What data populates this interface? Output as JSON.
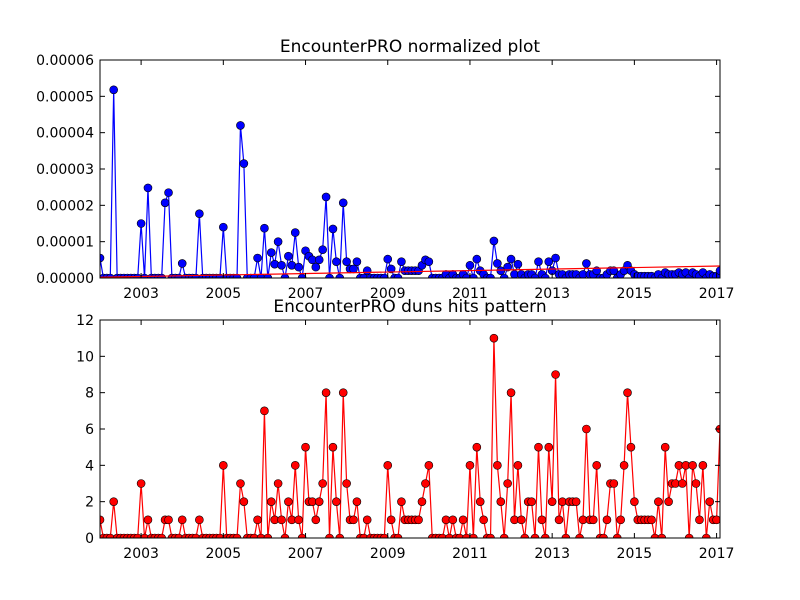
{
  "chart_data": [
    {
      "type": "line",
      "title": "EncounterPRO normalized plot",
      "x": [
        2002,
        2002.083,
        2002.167,
        2002.25,
        2002.333,
        2002.417,
        2002.5,
        2002.583,
        2002.667,
        2002.75,
        2002.833,
        2002.917,
        2003,
        2003.083,
        2003.167,
        2003.25,
        2003.333,
        2003.417,
        2003.5,
        2003.583,
        2003.667,
        2003.75,
        2003.833,
        2003.917,
        2004,
        2004.083,
        2004.167,
        2004.25,
        2004.333,
        2004.417,
        2004.5,
        2004.583,
        2004.667,
        2004.75,
        2004.833,
        2004.917,
        2005,
        2005.083,
        2005.167,
        2005.25,
        2005.333,
        2005.417,
        2005.5,
        2005.583,
        2005.667,
        2005.75,
        2005.833,
        2005.917,
        2006,
        2006.083,
        2006.167,
        2006.25,
        2006.333,
        2006.417,
        2006.5,
        2006.583,
        2006.667,
        2006.75,
        2006.833,
        2006.917,
        2007,
        2007.083,
        2007.167,
        2007.25,
        2007.333,
        2007.417,
        2007.5,
        2007.583,
        2007.667,
        2007.75,
        2007.833,
        2007.917,
        2008,
        2008.083,
        2008.167,
        2008.25,
        2008.333,
        2008.417,
        2008.5,
        2008.583,
        2008.667,
        2008.75,
        2008.833,
        2008.917,
        2009,
        2009.083,
        2009.167,
        2009.25,
        2009.333,
        2009.417,
        2009.5,
        2009.583,
        2009.667,
        2009.75,
        2009.833,
        2009.917,
        2010,
        2010.083,
        2010.167,
        2010.25,
        2010.333,
        2010.417,
        2010.5,
        2010.583,
        2010.667,
        2010.75,
        2010.833,
        2010.917,
        2011,
        2011.083,
        2011.167,
        2011.25,
        2011.333,
        2011.417,
        2011.5,
        2011.583,
        2011.667,
        2011.75,
        2011.833,
        2011.917,
        2012,
        2012.083,
        2012.167,
        2012.25,
        2012.333,
        2012.417,
        2012.5,
        2012.583,
        2012.667,
        2012.75,
        2012.833,
        2012.917,
        2013,
        2013.083,
        2013.167,
        2013.25,
        2013.333,
        2013.417,
        2013.5,
        2013.583,
        2013.667,
        2013.75,
        2013.833,
        2013.917,
        2014,
        2014.083,
        2014.167,
        2014.25,
        2014.333,
        2014.417,
        2014.5,
        2014.583,
        2014.667,
        2014.75,
        2014.833,
        2014.917,
        2015,
        2015.083,
        2015.167,
        2015.25,
        2015.333,
        2015.417,
        2015.5,
        2015.583,
        2015.667,
        2015.75,
        2015.833,
        2015.917,
        2016,
        2016.083,
        2016.167,
        2016.25,
        2016.333,
        2016.417,
        2016.5,
        2016.583,
        2016.667,
        2016.75,
        2016.833,
        2016.917,
        2017,
        2017.083
      ],
      "series": [
        {
          "color": "#0000ff",
          "marker": true,
          "values": [
            5.5e-06,
            0,
            0,
            0,
            5.18e-05,
            0,
            0,
            0,
            0,
            0,
            0,
            0,
            1.5e-05,
            0,
            2.48e-05,
            0,
            0,
            0,
            0,
            2.07e-05,
            2.35e-05,
            0,
            0,
            0,
            4e-06,
            0,
            0,
            0,
            0,
            1.77e-05,
            0,
            0,
            0,
            0,
            0,
            0,
            1.4e-05,
            0,
            0,
            0,
            0,
            4.2e-05,
            3.15e-05,
            0,
            0,
            0,
            5.5e-06,
            0,
            1.37e-05,
            0,
            7e-06,
            3.8e-06,
            1e-05,
            3.5e-06,
            0,
            6e-06,
            3.5e-06,
            1.25e-05,
            3e-06,
            0,
            7.5e-06,
            6e-06,
            5e-06,
            3e-06,
            5e-06,
            7.8e-06,
            2.23e-05,
            0,
            1.35e-05,
            4.5e-06,
            0,
            2.07e-05,
            4.5e-06,
            2.5e-06,
            2.5e-06,
            4.5e-06,
            0,
            0,
            2e-06,
            0,
            0,
            0,
            0,
            0,
            5.2e-06,
            2.5e-06,
            0,
            0,
            4.5e-06,
            2e-06,
            2e-06,
            2e-06,
            2e-06,
            2e-06,
            3.5e-06,
            5e-06,
            4.5e-06,
            0,
            0,
            0,
            0,
            1e-06,
            0,
            1e-06,
            0,
            0,
            1e-06,
            0,
            3.5e-06,
            0,
            5.2e-06,
            2e-06,
            1e-06,
            0,
            0,
            1.02e-05,
            4e-06,
            2e-06,
            0,
            3e-06,
            5.2e-06,
            1e-06,
            3.8e-06,
            1e-06,
            0,
            1e-06,
            1e-06,
            0,
            4.5e-06,
            1e-06,
            0,
            4.5e-06,
            2e-06,
            5.5e-06,
            1e-06,
            1e-06,
            0,
            1e-06,
            1e-06,
            1e-06,
            0,
            1e-06,
            4e-06,
            1e-06,
            1e-06,
            2e-06,
            0,
            0,
            1e-06,
            2e-06,
            2e-06,
            0,
            1e-06,
            2e-06,
            3.5e-06,
            2e-06,
            1e-06,
            5e-07,
            5e-07,
            5e-07,
            5e-07,
            5e-07,
            0,
            1e-06,
            0,
            1.5e-06,
            1e-06,
            1e-06,
            1e-06,
            1.5e-06,
            1e-06,
            1.5e-06,
            0,
            1.5e-06,
            1e-06,
            5e-07,
            1.5e-06,
            0,
            1e-06,
            5e-07,
            5e-07,
            2e-06
          ]
        },
        {
          "color": "#ff0000",
          "marker": false,
          "x": [
            2002,
            2017.083
          ],
          "values": [
            2e-07,
            3.3e-06
          ]
        }
      ],
      "xlim": [
        2002,
        2017.083
      ],
      "ylim": [
        0,
        6e-05
      ],
      "xticks": [
        2003,
        2005,
        2007,
        2009,
        2011,
        2013,
        2015,
        2017
      ],
      "yticks": [
        {
          "value": 0,
          "label": "0.00000"
        },
        {
          "value": 1e-05,
          "label": "0.00001"
        },
        {
          "value": 2e-05,
          "label": "0.00002"
        },
        {
          "value": 3e-05,
          "label": "0.00003"
        },
        {
          "value": 4e-05,
          "label": "0.00004"
        },
        {
          "value": 5e-05,
          "label": "0.00005"
        },
        {
          "value": 6e-05,
          "label": "0.00006"
        }
      ]
    },
    {
      "type": "line",
      "title": "EncounterPRO duns hits pattern",
      "x": [
        2002,
        2002.083,
        2002.167,
        2002.25,
        2002.333,
        2002.417,
        2002.5,
        2002.583,
        2002.667,
        2002.75,
        2002.833,
        2002.917,
        2003,
        2003.083,
        2003.167,
        2003.25,
        2003.333,
        2003.417,
        2003.5,
        2003.583,
        2003.667,
        2003.75,
        2003.833,
        2003.917,
        2004,
        2004.083,
        2004.167,
        2004.25,
        2004.333,
        2004.417,
        2004.5,
        2004.583,
        2004.667,
        2004.75,
        2004.833,
        2004.917,
        2005,
        2005.083,
        2005.167,
        2005.25,
        2005.333,
        2005.417,
        2005.5,
        2005.583,
        2005.667,
        2005.75,
        2005.833,
        2005.917,
        2006,
        2006.083,
        2006.167,
        2006.25,
        2006.333,
        2006.417,
        2006.5,
        2006.583,
        2006.667,
        2006.75,
        2006.833,
        2006.917,
        2007,
        2007.083,
        2007.167,
        2007.25,
        2007.333,
        2007.417,
        2007.5,
        2007.583,
        2007.667,
        2007.75,
        2007.833,
        2007.917,
        2008,
        2008.083,
        2008.167,
        2008.25,
        2008.333,
        2008.417,
        2008.5,
        2008.583,
        2008.667,
        2008.75,
        2008.833,
        2008.917,
        2009,
        2009.083,
        2009.167,
        2009.25,
        2009.333,
        2009.417,
        2009.5,
        2009.583,
        2009.667,
        2009.75,
        2009.833,
        2009.917,
        2010,
        2010.083,
        2010.167,
        2010.25,
        2010.333,
        2010.417,
        2010.5,
        2010.583,
        2010.667,
        2010.75,
        2010.833,
        2010.917,
        2011,
        2011.083,
        2011.167,
        2011.25,
        2011.333,
        2011.417,
        2011.5,
        2011.583,
        2011.667,
        2011.75,
        2011.833,
        2011.917,
        2012,
        2012.083,
        2012.167,
        2012.25,
        2012.333,
        2012.417,
        2012.5,
        2012.583,
        2012.667,
        2012.75,
        2012.833,
        2012.917,
        2013,
        2013.083,
        2013.167,
        2013.25,
        2013.333,
        2013.417,
        2013.5,
        2013.583,
        2013.667,
        2013.75,
        2013.833,
        2013.917,
        2014,
        2014.083,
        2014.167,
        2014.25,
        2014.333,
        2014.417,
        2014.5,
        2014.583,
        2014.667,
        2014.75,
        2014.833,
        2014.917,
        2015,
        2015.083,
        2015.167,
        2015.25,
        2015.333,
        2015.417,
        2015.5,
        2015.583,
        2015.667,
        2015.75,
        2015.833,
        2015.917,
        2016,
        2016.083,
        2016.167,
        2016.25,
        2016.333,
        2016.417,
        2016.5,
        2016.583,
        2016.667,
        2016.75,
        2016.833,
        2016.917,
        2017,
        2017.083
      ],
      "series": [
        {
          "color": "#ff0000",
          "marker": true,
          "values": [
            1,
            0,
            0,
            0,
            2,
            0,
            0,
            0,
            0,
            0,
            0,
            0,
            3,
            0,
            1,
            0,
            0,
            0,
            0,
            1,
            1,
            0,
            0,
            0,
            1,
            0,
            0,
            0,
            0,
            1,
            0,
            0,
            0,
            0,
            0,
            0,
            4,
            0,
            0,
            0,
            0,
            3,
            2,
            0,
            0,
            0,
            1,
            0,
            7,
            0,
            2,
            1,
            3,
            1,
            0,
            2,
            1,
            4,
            1,
            0,
            5,
            2,
            2,
            1,
            2,
            3,
            8,
            0,
            5,
            2,
            0,
            8,
            3,
            1,
            1,
            2,
            0,
            0,
            1,
            0,
            0,
            0,
            0,
            0,
            4,
            1,
            0,
            0,
            2,
            1,
            1,
            1,
            1,
            1,
            2,
            3,
            4,
            0,
            0,
            0,
            0,
            1,
            0,
            1,
            0,
            0,
            1,
            0,
            4,
            0,
            5,
            2,
            1,
            0,
            0,
            11,
            4,
            2,
            0,
            3,
            8,
            1,
            4,
            1,
            0,
            2,
            2,
            0,
            5,
            1,
            0,
            5,
            2,
            9,
            1,
            2,
            0,
            2,
            2,
            2,
            0,
            1,
            6,
            1,
            1,
            4,
            0,
            0,
            1,
            3,
            3,
            0,
            1,
            4,
            8,
            5,
            2,
            1,
            1,
            1,
            1,
            1,
            0,
            2,
            0,
            5,
            2,
            3,
            3,
            4,
            3,
            4,
            0,
            4,
            3,
            1,
            4,
            0,
            2,
            1,
            1,
            6
          ]
        }
      ],
      "xlim": [
        2002,
        2017.083
      ],
      "ylim": [
        0,
        12
      ],
      "xticks": [
        2003,
        2005,
        2007,
        2009,
        2011,
        2013,
        2015,
        2017
      ],
      "yticks": [
        0,
        2,
        4,
        6,
        8,
        10,
        12
      ]
    }
  ]
}
